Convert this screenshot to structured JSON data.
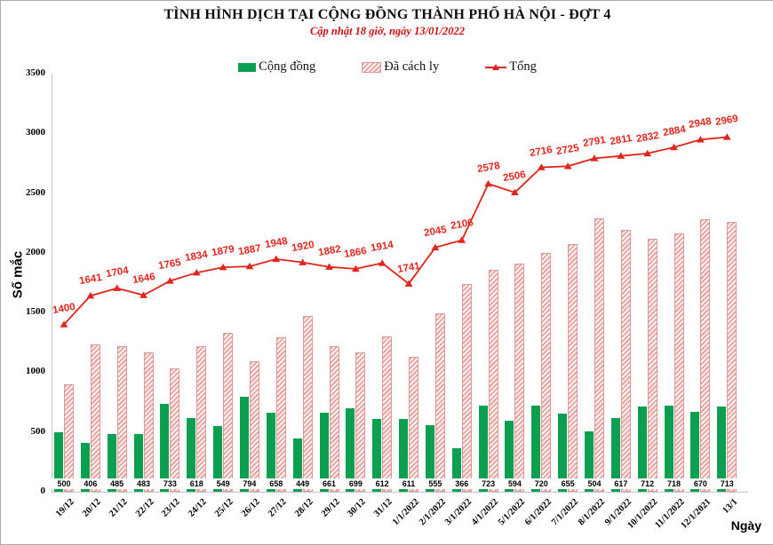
{
  "header": {
    "title": "TÌNH HÌNH DỊCH TẠI CỘNG ĐỒNG THÀNH PHỐ HÀ NỘI - ĐỢT 4",
    "subtitle": "Cập nhật 18 giờ, ngày 13/01/2022"
  },
  "legend": [
    {
      "id": "community",
      "label": "Cộng đồng",
      "swatch": "green-solid"
    },
    {
      "id": "quarantine",
      "label": "Đã cách ly",
      "swatch": "pink-hatched"
    },
    {
      "id": "total",
      "label": "Tổng",
      "swatch": "red-line-marker"
    }
  ],
  "axes": {
    "y_label": "Số mắc",
    "x_label": "Ngày",
    "y_ticks": [
      0,
      500,
      1000,
      1500,
      2000,
      2500,
      3000,
      3500
    ]
  },
  "colors": {
    "community_green": "#0aa050",
    "quarantine_pink": "#e9a8a4",
    "quarantine_border": "#dc9a96",
    "line_red": "#e1251b",
    "subtitle_red": "#cc1111",
    "axis_gray": "#c6c6c6"
  },
  "chart_data": {
    "type": "bar+line",
    "title": "TÌNH HÌNH DỊCH TẠI CỘNG ĐỒNG THÀNH PHỐ HÀ NỘI - ĐỢT 4",
    "subtitle": "Cập nhật 18 giờ, ngày 13/01/2022",
    "xlabel": "Ngày",
    "ylabel": "Số mắc",
    "ylim": [
      0,
      3500
    ],
    "grid": false,
    "legend_position": "top",
    "categories": [
      "19/12",
      "20/12",
      "21/12",
      "22/12",
      "23/12",
      "24/12",
      "25/12",
      "26/12",
      "27/12",
      "28/12",
      "29/12",
      "30/12",
      "31/12",
      "1/1/2022",
      "2/1/2022",
      "3/1/2022",
      "4/1/2022",
      "5/1/2022",
      "6/1/2022",
      "7/1/2022",
      "8/1/2022",
      "9/1/2022",
      "10/1/2022",
      "11/1/2022",
      "12/1/2021",
      "13/1"
    ],
    "series": [
      {
        "name": "Cộng đồng",
        "type": "bar",
        "style": "solid-green",
        "values_labeled_on_chart": true,
        "values": [
          500,
          406,
          485,
          483,
          733,
          618,
          549,
          794,
          658,
          449,
          661,
          699,
          612,
          611,
          555,
          366,
          723,
          594,
          720,
          655,
          504,
          617,
          712,
          718,
          670,
          713
        ]
      },
      {
        "name": "Đã cách ly",
        "type": "bar",
        "style": "pink-hatched",
        "values_labeled_on_chart": false,
        "values": [
          900,
          1235,
          1219,
          1163,
          1032,
          1216,
          1330,
          1093,
          1290,
          1471,
          1221,
          1167,
          1302,
          1130,
          1490,
          1740,
          1855,
          1912,
          1996,
          2070,
          2287,
          2194,
          2120,
          2166,
          2278,
          2256
        ]
      },
      {
        "name": "Tổng",
        "type": "line",
        "style": "red-line-triangle-markers",
        "values_labeled_on_chart": true,
        "values": [
          1400,
          1641,
          1704,
          1646,
          1765,
          1834,
          1879,
          1887,
          1948,
          1920,
          1882,
          1866,
          1914,
          1741,
          2045,
          2106,
          2578,
          2506,
          2716,
          2725,
          2791,
          2811,
          2832,
          2884,
          2948,
          2969
        ]
      }
    ]
  }
}
